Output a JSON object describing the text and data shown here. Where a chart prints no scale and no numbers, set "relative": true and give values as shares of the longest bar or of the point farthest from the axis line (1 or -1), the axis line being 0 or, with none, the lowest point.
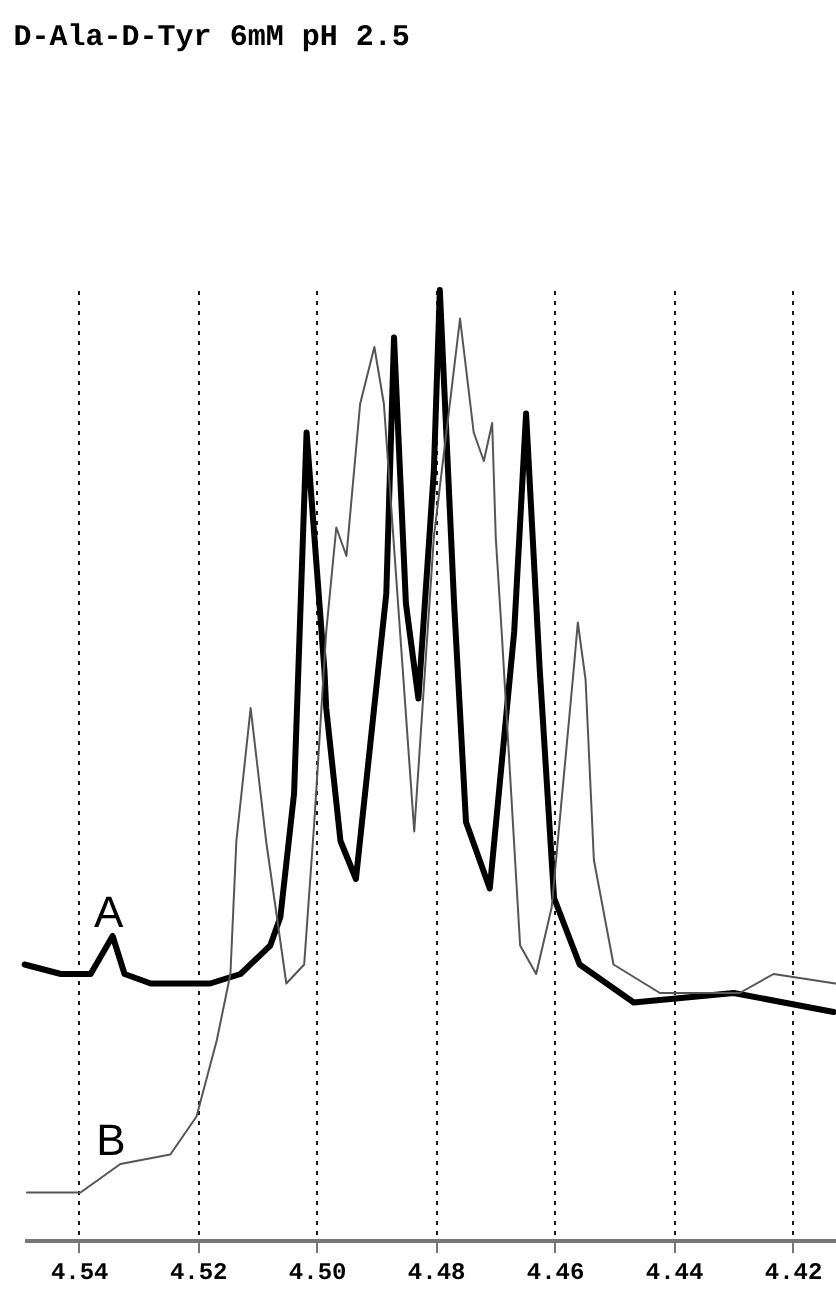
{
  "chart_data": {
    "type": "line",
    "title": "D-Ala-D-Tyr 6mM pH 2.5",
    "relative": true,
    "grid": "x",
    "line_style": "solid",
    "xlim": [
      4.5492,
      4.4127
    ],
    "xticks": [
      4.54,
      4.52,
      {
        "value": 4.5,
        "label": "4.50"
      },
      4.48,
      4.46,
      4.44,
      4.42
    ],
    "series": [
      {
        "name": "A",
        "color": "#000000",
        "x": [
          4.5491,
          4.543,
          4.538,
          4.5343,
          4.5323,
          4.5279,
          4.5212,
          4.5179,
          4.5128,
          4.5078,
          4.5061,
          4.5038,
          4.5017,
          4.4987,
          4.4984,
          4.496,
          4.4934,
          4.4883,
          4.487,
          4.485,
          4.4829,
          4.4803,
          4.4793,
          4.4769,
          4.4749,
          4.4709,
          4.4668,
          4.4648,
          4.4625,
          4.4601,
          4.4558,
          4.4467,
          4.4299,
          4.4131
        ],
        "values": [
          0.29,
          0.28,
          0.28,
          0.32,
          0.28,
          0.27,
          0.27,
          0.27,
          0.28,
          0.31,
          0.34,
          0.47,
          0.85,
          0.6,
          0.56,
          0.42,
          0.38,
          0.68,
          0.95,
          0.67,
          0.57,
          0.81,
          1.0,
          0.67,
          0.44,
          0.37,
          0.64,
          0.87,
          0.6,
          0.36,
          0.29,
          0.25,
          0.26,
          0.24
        ]
      },
      {
        "name": "B",
        "color": "#555555",
        "x": [
          4.5487,
          4.5397,
          4.533,
          4.5246,
          4.5202,
          4.5168,
          4.5145,
          4.5135,
          4.5111,
          4.5085,
          4.5051,
          4.5021,
          4.5004,
          4.4984,
          4.4967,
          4.495,
          4.4927,
          4.4903,
          4.4887,
          4.4836,
          4.4803,
          4.4759,
          4.4736,
          4.4719,
          4.4705,
          4.4699,
          4.4689,
          4.4658,
          4.4631,
          4.4605,
          4.4568,
          4.4561,
          4.4548,
          4.4534,
          4.4501,
          4.4423,
          4.4289,
          4.4232,
          4.4128
        ],
        "values": [
          0.05,
          0.05,
          0.08,
          0.09,
          0.13,
          0.21,
          0.28,
          0.42,
          0.56,
          0.42,
          0.27,
          0.29,
          0.44,
          0.64,
          0.75,
          0.72,
          0.88,
          0.94,
          0.88,
          0.43,
          0.74,
          0.97,
          0.85,
          0.82,
          0.86,
          0.74,
          0.64,
          0.31,
          0.28,
          0.35,
          0.6,
          0.65,
          0.59,
          0.4,
          0.29,
          0.26,
          0.26,
          0.28,
          0.27
        ]
      }
    ]
  }
}
